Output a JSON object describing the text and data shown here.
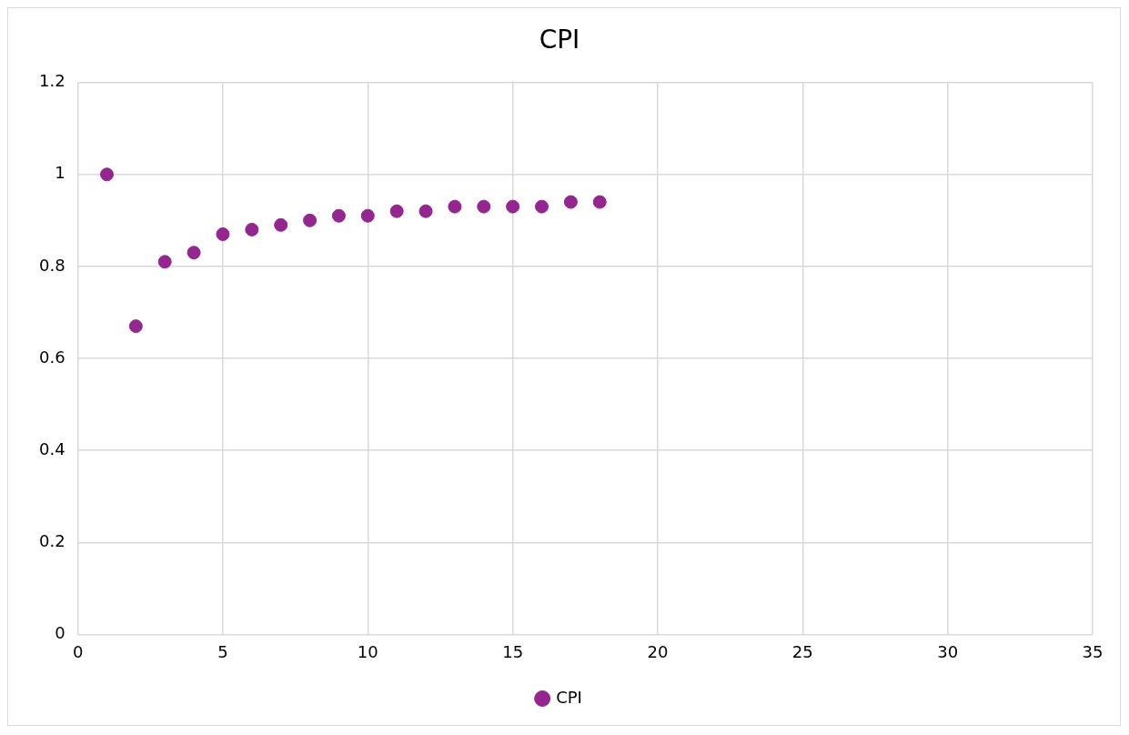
{
  "chart_data": {
    "type": "scatter",
    "title": "CPI",
    "series": [
      {
        "name": "CPI",
        "color": "#93278f",
        "x": [
          1,
          2,
          3,
          4,
          5,
          6,
          7,
          8,
          9,
          10,
          11,
          12,
          13,
          14,
          15,
          16,
          17,
          18
        ],
        "values": [
          1.0,
          0.67,
          0.81,
          0.83,
          0.87,
          0.88,
          0.89,
          0.9,
          0.91,
          0.91,
          0.92,
          0.92,
          0.93,
          0.93,
          0.93,
          0.93,
          0.94,
          0.94
        ]
      }
    ],
    "xlim": [
      0,
      35
    ],
    "xticks": [
      0,
      5,
      10,
      15,
      20,
      25,
      30,
      35
    ],
    "ylim": [
      0,
      1.2
    ],
    "yticks": [
      0,
      0.2,
      0.4,
      0.6,
      0.8,
      1,
      1.2
    ],
    "grid": true,
    "legend": "bottom",
    "marker": "circle"
  }
}
